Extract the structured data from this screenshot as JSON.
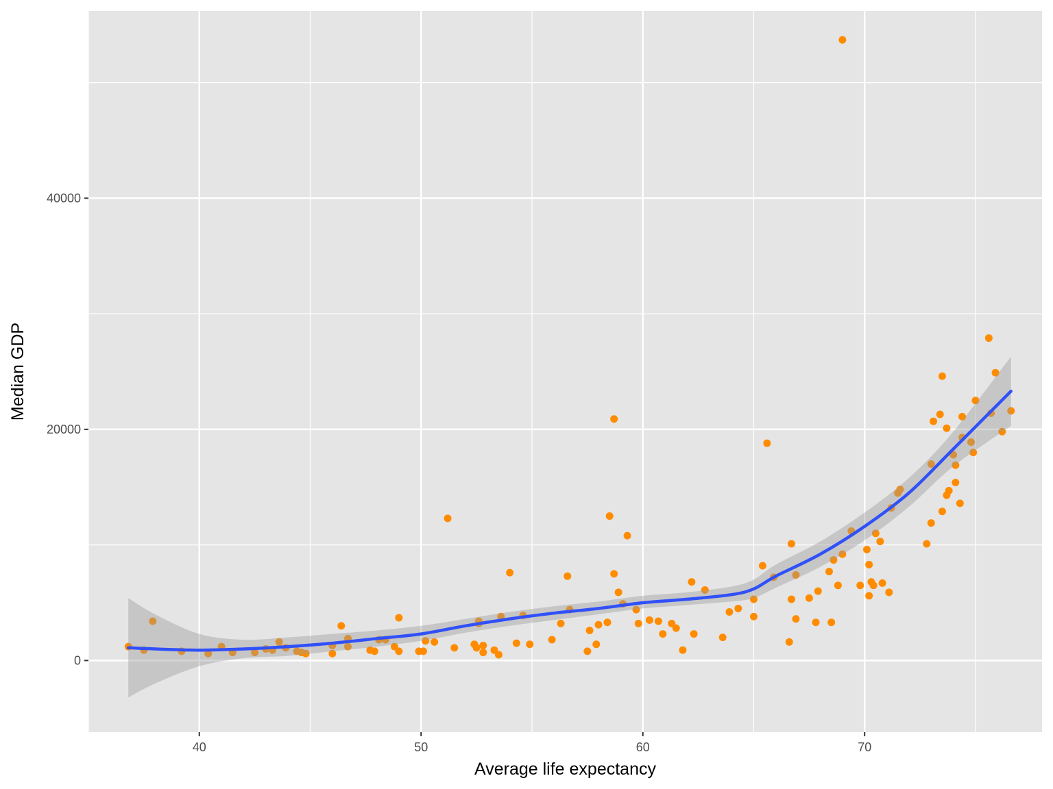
{
  "chart_data": {
    "type": "scatter",
    "title": "",
    "xlabel": "Average life expectancy",
    "ylabel": "Median GDP",
    "xlim": [
      35,
      78
    ],
    "ylim": [
      -6200,
      56200
    ],
    "x_ticks": [
      40,
      50,
      60,
      70
    ],
    "x_tick_labels": [
      "40",
      "50",
      "60",
      "70"
    ],
    "y_ticks": [
      0,
      20000,
      40000
    ],
    "y_tick_labels": [
      "0",
      "20000",
      "40000"
    ],
    "grid": true,
    "legend": "none",
    "colors": {
      "panel": "#e5e5e5",
      "grid": "#ffffff",
      "points": "#ff8c00",
      "smooth_line": "#3050f8",
      "ribbon": "#999999"
    },
    "series": [
      {
        "type": "scatter",
        "points": [
          [
            36.8,
            1200
          ],
          [
            37.5,
            900
          ],
          [
            37.9,
            3400
          ],
          [
            39.2,
            800
          ],
          [
            40.4,
            600
          ],
          [
            41.0,
            1200
          ],
          [
            41.5,
            700
          ],
          [
            42.5,
            700
          ],
          [
            43.0,
            1000
          ],
          [
            43.3,
            900
          ],
          [
            43.6,
            1600
          ],
          [
            43.9,
            1100
          ],
          [
            44.4,
            800
          ],
          [
            44.6,
            700
          ],
          [
            44.8,
            600
          ],
          [
            46.0,
            1300
          ],
          [
            46.4,
            3000
          ],
          [
            46.0,
            600
          ],
          [
            46.7,
            1900
          ],
          [
            46.7,
            1200
          ],
          [
            47.7,
            900
          ],
          [
            47.9,
            800
          ],
          [
            48.1,
            1800
          ],
          [
            48.4,
            1800
          ],
          [
            48.8,
            1200
          ],
          [
            49.0,
            3700
          ],
          [
            49.0,
            800
          ],
          [
            49.9,
            800
          ],
          [
            50.1,
            800
          ],
          [
            50.2,
            1700
          ],
          [
            50.6,
            1600
          ],
          [
            51.2,
            12300
          ],
          [
            51.5,
            1100
          ],
          [
            52.4,
            1400
          ],
          [
            52.6,
            3400
          ],
          [
            52.6,
            3200
          ],
          [
            52.5,
            1100
          ],
          [
            52.8,
            1300
          ],
          [
            52.8,
            700
          ],
          [
            53.3,
            900
          ],
          [
            53.5,
            500
          ],
          [
            53.6,
            3800
          ],
          [
            54.0,
            7600
          ],
          [
            54.3,
            1500
          ],
          [
            54.6,
            3900
          ],
          [
            54.9,
            1400
          ],
          [
            55.9,
            1800
          ],
          [
            56.3,
            3200
          ],
          [
            56.6,
            7300
          ],
          [
            56.7,
            4400
          ],
          [
            57.5,
            800
          ],
          [
            57.6,
            2600
          ],
          [
            57.9,
            1400
          ],
          [
            58.0,
            3100
          ],
          [
            58.4,
            3300
          ],
          [
            58.5,
            12500
          ],
          [
            58.7,
            7500
          ],
          [
            58.7,
            20900
          ],
          [
            58.9,
            5900
          ],
          [
            59.1,
            4900
          ],
          [
            59.3,
            10800
          ],
          [
            59.7,
            4400
          ],
          [
            59.8,
            3200
          ],
          [
            60.3,
            3500
          ],
          [
            60.7,
            3400
          ],
          [
            60.9,
            2300
          ],
          [
            61.3,
            3200
          ],
          [
            61.5,
            2800
          ],
          [
            61.8,
            900
          ],
          [
            62.2,
            6800
          ],
          [
            62.3,
            2300
          ],
          [
            62.8,
            6100
          ],
          [
            63.6,
            2000
          ],
          [
            63.9,
            4200
          ],
          [
            64.3,
            4500
          ],
          [
            65.0,
            5300
          ],
          [
            65.0,
            3800
          ],
          [
            65.4,
            8200
          ],
          [
            65.6,
            18800
          ],
          [
            65.9,
            7200
          ],
          [
            66.6,
            1600
          ],
          [
            66.7,
            10100
          ],
          [
            66.7,
            5300
          ],
          [
            66.9,
            3600
          ],
          [
            66.9,
            7400
          ],
          [
            67.5,
            5400
          ],
          [
            67.8,
            3300
          ],
          [
            67.9,
            6000
          ],
          [
            68.4,
            7700
          ],
          [
            68.5,
            3300
          ],
          [
            68.6,
            8700
          ],
          [
            68.8,
            6500
          ],
          [
            69.0,
            53700
          ],
          [
            69.0,
            9200
          ],
          [
            69.4,
            11200
          ],
          [
            69.8,
            6500
          ],
          [
            70.1,
            9600
          ],
          [
            70.2,
            5600
          ],
          [
            70.2,
            8300
          ],
          [
            70.3,
            6800
          ],
          [
            70.4,
            6500
          ],
          [
            70.5,
            11000
          ],
          [
            70.7,
            10300
          ],
          [
            70.8,
            6700
          ],
          [
            71.1,
            5900
          ],
          [
            71.2,
            13200
          ],
          [
            71.5,
            14500
          ],
          [
            71.6,
            14800
          ],
          [
            72.8,
            10100
          ],
          [
            73.0,
            11900
          ],
          [
            73.0,
            17000
          ],
          [
            73.1,
            20700
          ],
          [
            73.4,
            21300
          ],
          [
            73.5,
            12900
          ],
          [
            73.5,
            24600
          ],
          [
            73.7,
            20100
          ],
          [
            73.7,
            14300
          ],
          [
            73.8,
            14700
          ],
          [
            74.0,
            17800
          ],
          [
            74.1,
            16900
          ],
          [
            74.1,
            15400
          ],
          [
            74.3,
            13600
          ],
          [
            74.4,
            19300
          ],
          [
            74.4,
            21100
          ],
          [
            74.8,
            18900
          ],
          [
            74.9,
            18000
          ],
          [
            75.0,
            22500
          ],
          [
            75.6,
            27900
          ],
          [
            75.7,
            21400
          ],
          [
            75.9,
            24900
          ],
          [
            76.2,
            19800
          ],
          [
            76.6,
            21600
          ]
        ]
      },
      {
        "type": "line",
        "kind": "smooth fit with confidence band",
        "x": [
          36.8,
          38,
          40,
          42,
          44,
          46,
          48,
          50,
          52,
          54,
          56,
          58,
          60,
          62,
          64,
          65,
          66,
          68,
          70,
          72,
          74,
          76.6
        ],
        "y": [
          1100,
          1000,
          900,
          1000,
          1200,
          1500,
          1900,
          2300,
          3000,
          3600,
          4100,
          4500,
          5000,
          5300,
          5700,
          6200,
          7300,
          9200,
          11600,
          14500,
          18300,
          23300
        ],
        "lower": [
          -3200,
          -2000,
          -500,
          200,
          400,
          800,
          1200,
          1700,
          2400,
          3000,
          3500,
          4000,
          4500,
          4800,
          5100,
          5400,
          6300,
          8100,
          10400,
          13300,
          16800,
          20300
        ],
        "upper": [
          5400,
          4000,
          2300,
          1800,
          2000,
          2300,
          2600,
          3000,
          3600,
          4200,
          4700,
          5100,
          5600,
          5900,
          6400,
          7000,
          8300,
          10300,
          12800,
          15800,
          19800,
          26300
        ]
      }
    ]
  }
}
